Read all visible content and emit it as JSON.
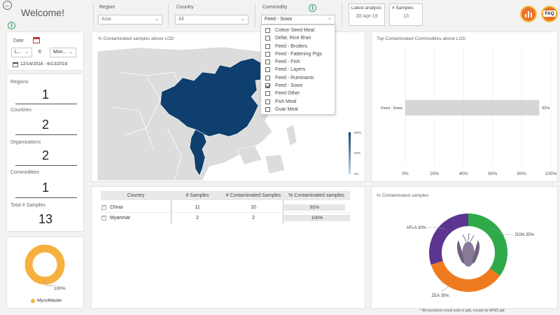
{
  "header": {
    "welcome": "Welcome!",
    "filters": {
      "region": {
        "label": "Region",
        "value": "Asia"
      },
      "country": {
        "label": "Country",
        "value": "All"
      },
      "commodity": {
        "label": "Commodity",
        "value": "Feed - Sows"
      }
    },
    "latest_analysis": {
      "label": "Latest analysis",
      "value": "30-Apr-19"
    },
    "samples": {
      "label": "# Samples",
      "value": "13"
    },
    "faq_label": "FAQ"
  },
  "date_panel": {
    "label": "Date",
    "relative_value": "L...",
    "count_value": "6",
    "unit_value": "Mon...",
    "range_text": "12/14/2018 - 6/13/2019"
  },
  "stats": [
    {
      "label": "Regions",
      "value": "1"
    },
    {
      "label": "Countries",
      "value": "2"
    },
    {
      "label": "Organizations",
      "value": "2"
    },
    {
      "label": "Commodities",
      "value": "1"
    },
    {
      "label": "Total # Samples",
      "value": "13"
    }
  ],
  "mycomaster": {
    "percent_label": "100%",
    "legend": "MycoMaster",
    "color": "#f5b040"
  },
  "map": {
    "title": "% Contaminated samples above LOD",
    "legend_ticks": [
      "100%",
      "50%",
      "0%"
    ],
    "highlight_color": "#0e3f6e"
  },
  "commodity_menu": {
    "items": [
      {
        "label": "Cotton Seed Meal",
        "checked": false
      },
      {
        "label": "Defat. Rice Bran",
        "checked": false
      },
      {
        "label": "Feed - Broilers",
        "checked": false
      },
      {
        "label": "Feed - Fattening Pigs",
        "checked": false
      },
      {
        "label": "Feed - Fish",
        "checked": false
      },
      {
        "label": "Feed - Layers",
        "checked": false
      },
      {
        "label": "Feed - Ruminants",
        "checked": false
      },
      {
        "label": "Feed - Sows",
        "checked": true
      },
      {
        "label": "Feed Other",
        "checked": false
      },
      {
        "label": "Fish Meal",
        "checked": false
      },
      {
        "label": "Guar Meal",
        "checked": false
      }
    ]
  },
  "bar_chart": {
    "title": "Top Contaminated Commodities above LOD",
    "category": "Feed - Sows",
    "value_label": "92%",
    "ticks": [
      "0%",
      "20%",
      "40%",
      "60%",
      "80%",
      "100%"
    ]
  },
  "table": {
    "headers": [
      "Country",
      "# Samples",
      "# Contaminated Samples",
      "% Contaminated samples"
    ],
    "rows": [
      {
        "country": "China",
        "samples": "11",
        "contaminated": "10",
        "pct": "91%"
      },
      {
        "country": "Myanmar",
        "samples": "2",
        "contaminated": "2",
        "pct": "100%"
      }
    ]
  },
  "donut": {
    "title": "% Contaminated samples",
    "footnote": "* All mycotoxin result units in ppb, except for AFM1 ppt"
  },
  "chart_data": [
    {
      "type": "bar",
      "title": "Top Contaminated Commodities above LOD",
      "categories": [
        "Feed - Sows"
      ],
      "values": [
        92
      ],
      "xlim": [
        0,
        100
      ],
      "orientation": "horizontal"
    },
    {
      "type": "pie",
      "title": "% Contaminated samples",
      "categories": [
        "DON",
        "ZEA",
        "AFLA"
      ],
      "values": [
        35,
        35,
        30
      ],
      "value_labels": [
        "DON 35%",
        "ZEA 35%",
        "AFLA 30%"
      ],
      "colors": [
        "#2eaa4a",
        "#f07a1e",
        "#5b3590"
      ]
    },
    {
      "type": "pie",
      "title": "",
      "categories": [
        "MycoMaster"
      ],
      "values": [
        100
      ],
      "colors": [
        "#f5b040"
      ]
    }
  ]
}
